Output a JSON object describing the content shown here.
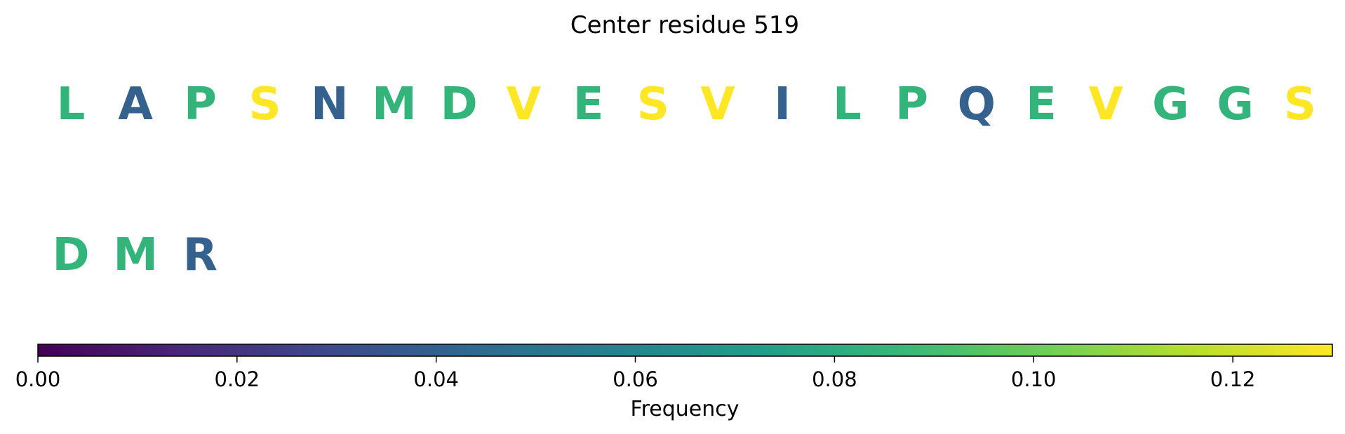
{
  "chart_data": {
    "type": "table",
    "title": "Center residue 519",
    "residues": [
      {
        "letter": "L",
        "frequency": 0.085
      },
      {
        "letter": "A",
        "frequency": 0.04
      },
      {
        "letter": "P",
        "frequency": 0.085
      },
      {
        "letter": "S",
        "frequency": 0.13
      },
      {
        "letter": "N",
        "frequency": 0.04
      },
      {
        "letter": "M",
        "frequency": 0.085
      },
      {
        "letter": "D",
        "frequency": 0.085
      },
      {
        "letter": "V",
        "frequency": 0.13
      },
      {
        "letter": "E",
        "frequency": 0.085
      },
      {
        "letter": "S",
        "frequency": 0.13
      },
      {
        "letter": "V",
        "frequency": 0.13
      },
      {
        "letter": "I",
        "frequency": 0.04
      },
      {
        "letter": "L",
        "frequency": 0.085
      },
      {
        "letter": "P",
        "frequency": 0.085
      },
      {
        "letter": "Q",
        "frequency": 0.04
      },
      {
        "letter": "E",
        "frequency": 0.085
      },
      {
        "letter": "V",
        "frequency": 0.13
      },
      {
        "letter": "G",
        "frequency": 0.085
      },
      {
        "letter": "G",
        "frequency": 0.085
      },
      {
        "letter": "S",
        "frequency": 0.13
      },
      {
        "letter": "D",
        "frequency": 0.085
      },
      {
        "letter": "M",
        "frequency": 0.085
      },
      {
        "letter": "R",
        "frequency": 0.04
      }
    ],
    "colorbar": {
      "label": "Frequency",
      "range": [
        0,
        0.13
      ],
      "ticks": [
        "0.00",
        "0.02",
        "0.04",
        "0.06",
        "0.08",
        "0.10",
        "0.12"
      ],
      "tick_values": [
        0,
        0.02,
        0.04,
        0.06,
        0.08,
        0.1,
        0.12
      ],
      "colormap": "viridis",
      "orientation": "horizontal",
      "placement": "bottom"
    }
  }
}
